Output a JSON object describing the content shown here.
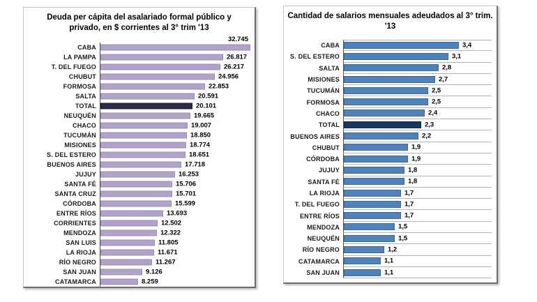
{
  "accent_colors": {
    "left_bar": "#b3a2c8",
    "left_highlight": "#2f2847",
    "right_bar": "#4f81bd",
    "right_highlight": "#17375e"
  },
  "chart_data": [
    {
      "type": "bar",
      "orientation": "horizontal",
      "title": "Deuda per cápita del asalariado formal público y privado, en $ corrientes al 3° trim '13",
      "title_lines": [
        "Deuda per cápita del asalariado formal público y",
        "privado, en $ corrientes al 3° trim '13"
      ],
      "xlabel": "",
      "ylabel": "",
      "xlim": [
        0,
        33500
      ],
      "grid": false,
      "legend": "none",
      "row_separators": false,
      "bar_color": "#b3a2c8",
      "highlight_color": "#2f2847",
      "highlight_category": "TOTAL",
      "categories": [
        "CABA",
        "LA PAMPA",
        "T. DEL FUEGO",
        "CHUBUT",
        "FORMOSA",
        "SALTA",
        "TOTAL",
        "NEUQUÉN",
        "CHACO",
        "TUCUMÁN",
        "MISIONES",
        "S. DEL ESTERO",
        "BUENOS AIRES",
        "JUJUY",
        "SANTA FÉ",
        "SANTA CRUZ",
        "CÓRDOBA",
        "ENTRE RÍOS",
        "CORRIENTES",
        "MENDOZA",
        "SAN LUIS",
        "LA RIOJA",
        "RÍO NEGRO",
        "SAN JUAN",
        "CATAMARCA"
      ],
      "values": [
        32745,
        26817,
        26217,
        24956,
        22853,
        20591,
        20101,
        19665,
        19007,
        18850,
        18774,
        18651,
        17718,
        16253,
        15706,
        15701,
        15599,
        13693,
        12502,
        12322,
        11805,
        11671,
        11267,
        9126,
        8259
      ],
      "value_labels": [
        "32.745",
        "26.817",
        "26.217",
        "24.956",
        "22.853",
        "20.591",
        "20.101",
        "19.665",
        "19.007",
        "18.850",
        "18.774",
        "18.651",
        "17.718",
        "16.253",
        "15.706",
        "15.701",
        "15.599",
        "13.693",
        "12.502",
        "12.322",
        "11.805",
        "11.671",
        "11.267",
        "9.126",
        "8.259"
      ]
    },
    {
      "type": "bar",
      "orientation": "horizontal",
      "title": "Cantidad de salarios mensuales adeudados al 3° trim. '13",
      "title_lines": [
        "Cantidad de salarios mensuales adeudados al 3° trim.",
        "'13"
      ],
      "xlabel": "",
      "ylabel": "",
      "xlim": [
        0,
        4.5
      ],
      "grid": false,
      "legend": "none",
      "row_separators": true,
      "bar_color": "#4f81bd",
      "highlight_color": "#17375e",
      "highlight_category": "TOTAL",
      "categories": [
        "CABA",
        "S. DEL ESTERO",
        "SALTA",
        "MISIONES",
        "TUCUMÁN",
        "FORMOSA",
        "CHACO",
        "TOTAL",
        "BUENOS AIRES",
        "CHUBUT",
        "CÓRDOBA",
        "JUJUY",
        "SANTA FÉ",
        "LA RIOJA",
        "T. DEL FUEGO",
        "ENTRE RÍOS",
        "MENDOZA",
        "NEUQUÉN",
        "RÍO NEGRO",
        "CATAMARCA",
        "SAN JUAN"
      ],
      "values": [
        3.4,
        3.1,
        2.8,
        2.7,
        2.5,
        2.5,
        2.4,
        2.3,
        2.2,
        1.9,
        1.9,
        1.8,
        1.8,
        1.7,
        1.7,
        1.7,
        1.5,
        1.5,
        1.2,
        1.1,
        1.1
      ],
      "value_labels": [
        "3,4",
        "3,1",
        "2,8",
        "2,7",
        "2,5",
        "2,5",
        "2,4",
        "2,3",
        "2,2",
        "1,9",
        "1,9",
        "1,8",
        "1,8",
        "1,7",
        "1,7",
        "1,7",
        "1,5",
        "1,5",
        "1,2",
        "1,1",
        "1,1"
      ]
    }
  ]
}
